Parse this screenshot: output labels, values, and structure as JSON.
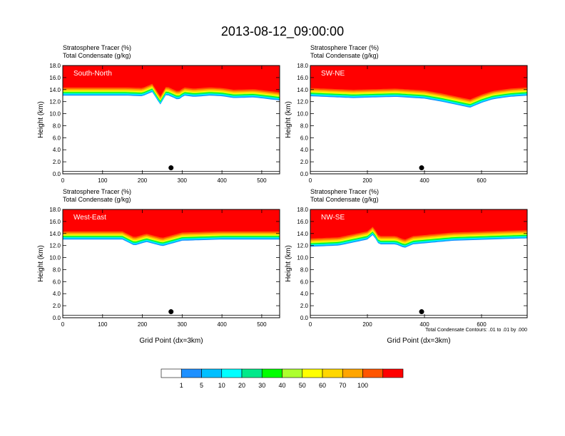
{
  "title": "2013-08-12_09:00:00",
  "colors": {
    "levels": [
      "#ffffff",
      "#1e90ff",
      "#00bfff",
      "#00ffff",
      "#00e98a",
      "#00ff00",
      "#adff2f",
      "#ffff00",
      "#ffd700",
      "#ffa500",
      "#ff5500",
      "#ff0000"
    ],
    "frame": "#000000",
    "contour": "#000000"
  },
  "chart_data": [
    {
      "type": "area",
      "label": "South-North",
      "title_lines": [
        "Stratosphere Tracer   (%)",
        "Total Condensate   (g/kg)"
      ],
      "ylabel": "Height (km)",
      "xlabel": "",
      "xlim": [
        0,
        545
      ],
      "ylim": [
        0,
        18
      ],
      "xticks": [
        0,
        100,
        200,
        300,
        400,
        500
      ],
      "yticks": [
        "0.0",
        "2.0",
        "4.0",
        "6.0",
        "8.0",
        "10.0",
        "12.0",
        "14.0",
        "16.0",
        "18.0"
      ],
      "tracer_base_km": [
        [
          0,
          13.0
        ],
        [
          160,
          13.0
        ],
        [
          200,
          12.9
        ],
        [
          225,
          13.6
        ],
        [
          245,
          11.5
        ],
        [
          260,
          13.2
        ],
        [
          290,
          12.3
        ],
        [
          305,
          13.0
        ],
        [
          330,
          12.8
        ],
        [
          370,
          13.0
        ],
        [
          400,
          12.9
        ],
        [
          430,
          12.6
        ],
        [
          480,
          12.7
        ],
        [
          545,
          12.2
        ]
      ],
      "band_thickness_km": 1.9,
      "marker_x": 272,
      "marker_km": 1.0
    },
    {
      "type": "area",
      "label": "SW-NE",
      "title_lines": [
        "Stratosphere Tracer   (%)",
        "Total Condensate   (g/kg)"
      ],
      "ylabel": "Height (km)",
      "xlabel": "",
      "xlim": [
        0,
        760
      ],
      "ylim": [
        0,
        18
      ],
      "xticks": [
        0,
        200,
        400,
        600
      ],
      "yticks": [
        "0.0",
        "2.0",
        "4.0",
        "6.0",
        "8.0",
        "10.0",
        "12.0",
        "14.0",
        "16.0",
        "18.0"
      ],
      "tracer_base_km": [
        [
          0,
          12.9
        ],
        [
          150,
          12.6
        ],
        [
          300,
          12.8
        ],
        [
          400,
          12.5
        ],
        [
          460,
          12.0
        ],
        [
          520,
          11.4
        ],
        [
          560,
          11.0
        ],
        [
          600,
          11.8
        ],
        [
          640,
          12.4
        ],
        [
          700,
          12.8
        ],
        [
          760,
          13.0
        ]
      ],
      "band_thickness_km": 1.9,
      "marker_x": 390,
      "marker_km": 1.0
    },
    {
      "type": "area",
      "label": "West-East",
      "title_lines": [
        "Stratosphere Tracer   (%)",
        "Total Condensate   (g/kg)"
      ],
      "ylabel": "Height (km)",
      "xlabel": "Grid Point (dx=3km)",
      "xlim": [
        0,
        545
      ],
      "ylim": [
        0,
        18
      ],
      "xticks": [
        0,
        100,
        200,
        300,
        400,
        500
      ],
      "yticks": [
        "0.0",
        "2.0",
        "4.0",
        "6.0",
        "8.0",
        "10.0",
        "12.0",
        "14.0",
        "16.0",
        "18.0"
      ],
      "tracer_base_km": [
        [
          0,
          13.0
        ],
        [
          150,
          13.0
        ],
        [
          180,
          12.0
        ],
        [
          210,
          12.6
        ],
        [
          250,
          11.9
        ],
        [
          300,
          12.8
        ],
        [
          400,
          13.0
        ],
        [
          545,
          13.0
        ]
      ],
      "band_thickness_km": 1.9,
      "marker_x": 272,
      "marker_km": 1.0
    },
    {
      "type": "area",
      "label": "NW-SE",
      "title_lines": [
        "Stratosphere Tracer   (%)",
        "Total Condensate   (g/kg)"
      ],
      "ylabel": "Height (km)",
      "xlabel": "Grid Point (dx=3km)",
      "xlim": [
        0,
        760
      ],
      "ylim": [
        0,
        18
      ],
      "xticks": [
        0,
        200,
        400,
        600
      ],
      "yticks": [
        "0.0",
        "2.0",
        "4.0",
        "6.0",
        "8.0",
        "10.0",
        "12.0",
        "14.0",
        "16.0",
        "18.0"
      ],
      "tracer_base_km": [
        [
          0,
          11.8
        ],
        [
          100,
          12.0
        ],
        [
          200,
          13.0
        ],
        [
          220,
          13.8
        ],
        [
          240,
          12.2
        ],
        [
          300,
          12.2
        ],
        [
          330,
          11.6
        ],
        [
          360,
          12.2
        ],
        [
          500,
          12.8
        ],
        [
          760,
          13.2
        ]
      ],
      "band_thickness_km": 1.9,
      "marker_x": 390,
      "marker_km": 1.0,
      "contour_note": "Total Condensate Contours: .01 to .01 by .000"
    }
  ],
  "colorbar": {
    "labels": [
      "1",
      "5",
      "10",
      "20",
      "30",
      "40",
      "50",
      "60",
      "70",
      "100"
    ]
  }
}
